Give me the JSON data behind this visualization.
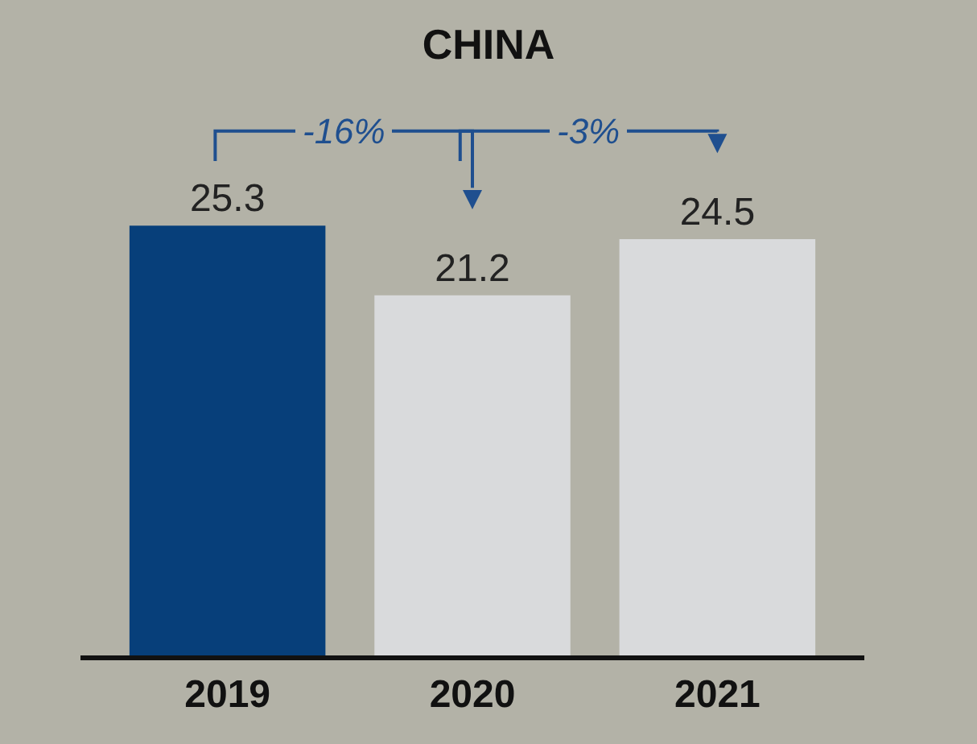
{
  "chart_data": {
    "type": "bar",
    "title": "CHINA",
    "categories": [
      "2019",
      "2020",
      "2021"
    ],
    "values": [
      25.3,
      21.2,
      24.5
    ],
    "colors": [
      "#073f7a",
      "#d9dadc",
      "#d9dadc"
    ],
    "data_labels": true,
    "annotations": [
      "-16%",
      "-3%"
    ],
    "grid": false
  }
}
